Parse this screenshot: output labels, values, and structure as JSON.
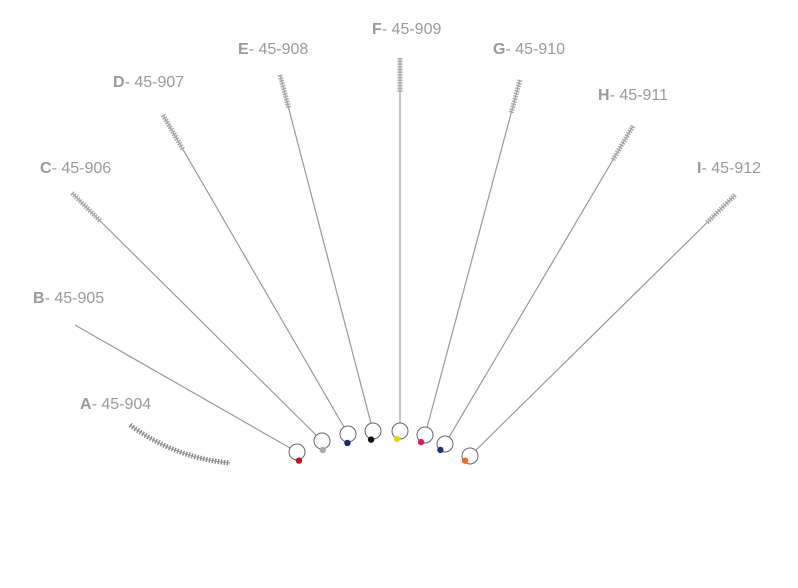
{
  "labels": [
    {
      "letter": "A",
      "code": "- 45-904"
    },
    {
      "letter": "B",
      "code": "- 45-905"
    },
    {
      "letter": "C",
      "code": "- 45-906"
    },
    {
      "letter": "D",
      "code": "- 45-907"
    },
    {
      "letter": "E",
      "code": "- 45-908"
    },
    {
      "letter": "F",
      "code": "- 45-909"
    },
    {
      "letter": "G",
      "code": "- 45-910"
    },
    {
      "letter": "H",
      "code": "- 45-911"
    },
    {
      "letter": "I",
      "code": "- 45-912"
    }
  ]
}
